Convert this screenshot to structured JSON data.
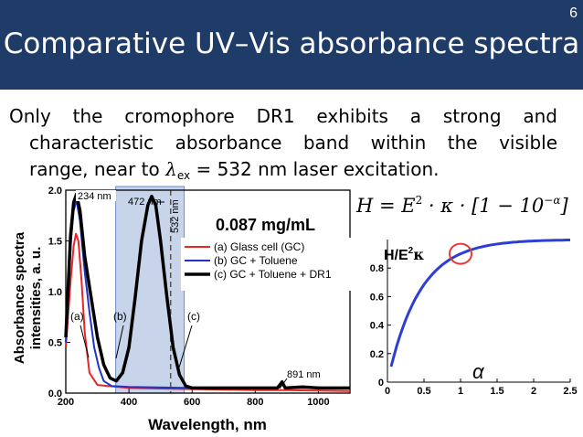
{
  "slide": {
    "page_number": "6",
    "title": "Comparative UV–Vis absorbance spectra",
    "body_line1": "Only the cromophore DR1 exhibits a strong and",
    "body_line2": "characteristic absorbance band within the visible",
    "body_line3_pre": "range, near to ",
    "lambda_symbol": "λ",
    "lambda_sub": "ex",
    "body_line3_post": " = 532 nm laser excitation."
  },
  "spectrum": {
    "ylabel_line1": "Absorbance spectra",
    "ylabel_line2": "intensities, a. u.",
    "xlabel": "Wavelength, nm",
    "concentration": "0.087 mg/mL",
    "annotations": {
      "peak234": "234 nm",
      "peak472": "472 nm",
      "line532": "532 nm",
      "peak891": "891 nm",
      "a": "(a)",
      "b": "(b)",
      "c": "(c)"
    }
  },
  "formula": {
    "lhs": "H",
    "eq": " = E",
    "exp2": "2",
    "mid": " · κ · [1 − 10",
    "exp": "−α",
    "close": "]"
  },
  "curve_plot": {
    "label_h": "H/E",
    "label_exp": "2",
    "label_kappa": "κ",
    "alpha": "α"
  },
  "colors": {
    "header_bg": "#1f3b68",
    "glass_cell": "#e8252a",
    "toluene": "#2034c8",
    "dr1": "#000000",
    "band_fill": "#c7d4ea",
    "curve": "#2d3fd2"
  },
  "chart_data": [
    {
      "type": "line",
      "xlabel": "Wavelength, nm",
      "ylabel": "Absorbance spectra intensities, a. u.",
      "xlim": [
        200,
        1100
      ],
      "ylim": [
        0,
        2.0
      ],
      "xticks": [
        200,
        400,
        600,
        800,
        1000
      ],
      "yticks": [
        0.0,
        0.5,
        1.0,
        1.5,
        2.0
      ],
      "legend_position": "top-right",
      "shaded_band_nm": [
        358,
        575
      ],
      "vline_nm": 532,
      "series": [
        {
          "name": "(a) Glass cell (GC)",
          "color": "#e8252a",
          "points": [
            [
              200,
              0.45
            ],
            [
              215,
              1.1
            ],
            [
              225,
              1.45
            ],
            [
              232,
              1.57
            ],
            [
              240,
              1.5
            ],
            [
              250,
              1.1
            ],
            [
              260,
              0.6
            ],
            [
              275,
              0.2
            ],
            [
              300,
              0.08
            ],
            [
              400,
              0.05
            ],
            [
              600,
              0.04
            ],
            [
              800,
              0.03
            ],
            [
              880,
              0.03
            ],
            [
              900,
              0.03
            ],
            [
              1100,
              0.02
            ]
          ]
        },
        {
          "name": "(b) GC + Toluene",
          "color": "#2034c8",
          "points": [
            [
              200,
              0.5
            ],
            [
              215,
              1.45
            ],
            [
              225,
              1.8
            ],
            [
              234,
              1.9
            ],
            [
              245,
              1.7
            ],
            [
              260,
              1.2
            ],
            [
              275,
              0.8
            ],
            [
              290,
              0.45
            ],
            [
              305,
              0.25
            ],
            [
              320,
              0.12
            ],
            [
              345,
              0.07
            ],
            [
              400,
              0.06
            ],
            [
              600,
              0.05
            ],
            [
              800,
              0.05
            ],
            [
              870,
              0.05
            ],
            [
              885,
              0.12
            ],
            [
              895,
              0.05
            ],
            [
              1000,
              0.05
            ],
            [
              1100,
              0.05
            ]
          ]
        },
        {
          "name": "(c) GC + Toluene + DR1",
          "color": "#000000",
          "points": [
            [
              200,
              0.55
            ],
            [
              215,
              1.55
            ],
            [
              225,
              1.88
            ],
            [
              234,
              1.96
            ],
            [
              245,
              1.8
            ],
            [
              260,
              1.35
            ],
            [
              280,
              0.95
            ],
            [
              300,
              0.55
            ],
            [
              320,
              0.28
            ],
            [
              340,
              0.15
            ],
            [
              360,
              0.12
            ],
            [
              380,
              0.2
            ],
            [
              400,
              0.45
            ],
            [
              420,
              0.95
            ],
            [
              440,
              1.5
            ],
            [
              460,
              1.85
            ],
            [
              472,
              1.94
            ],
            [
              485,
              1.85
            ],
            [
              500,
              1.5
            ],
            [
              520,
              0.95
            ],
            [
              540,
              0.45
            ],
            [
              560,
              0.18
            ],
            [
              580,
              0.07
            ],
            [
              600,
              0.05
            ],
            [
              700,
              0.05
            ],
            [
              800,
              0.05
            ],
            [
              870,
              0.05
            ],
            [
              885,
              0.11
            ],
            [
              895,
              0.05
            ],
            [
              950,
              0.06
            ],
            [
              1000,
              0.05
            ],
            [
              1100,
              0.05
            ]
          ]
        }
      ]
    },
    {
      "type": "line",
      "xlim": [
        0,
        2.5
      ],
      "ylim": [
        0,
        1.0
      ],
      "xticks": [
        0,
        0.5,
        1,
        1.5,
        2,
        2.5
      ],
      "yticks": [
        0,
        0.2,
        0.4,
        0.6,
        0.8
      ],
      "series": [
        {
          "color": "#2d3fd2",
          "formula": "1 - 10^(-alpha)",
          "x_range": [
            0.05,
            2.5
          ],
          "highlight_x": 1.0
        }
      ]
    }
  ]
}
